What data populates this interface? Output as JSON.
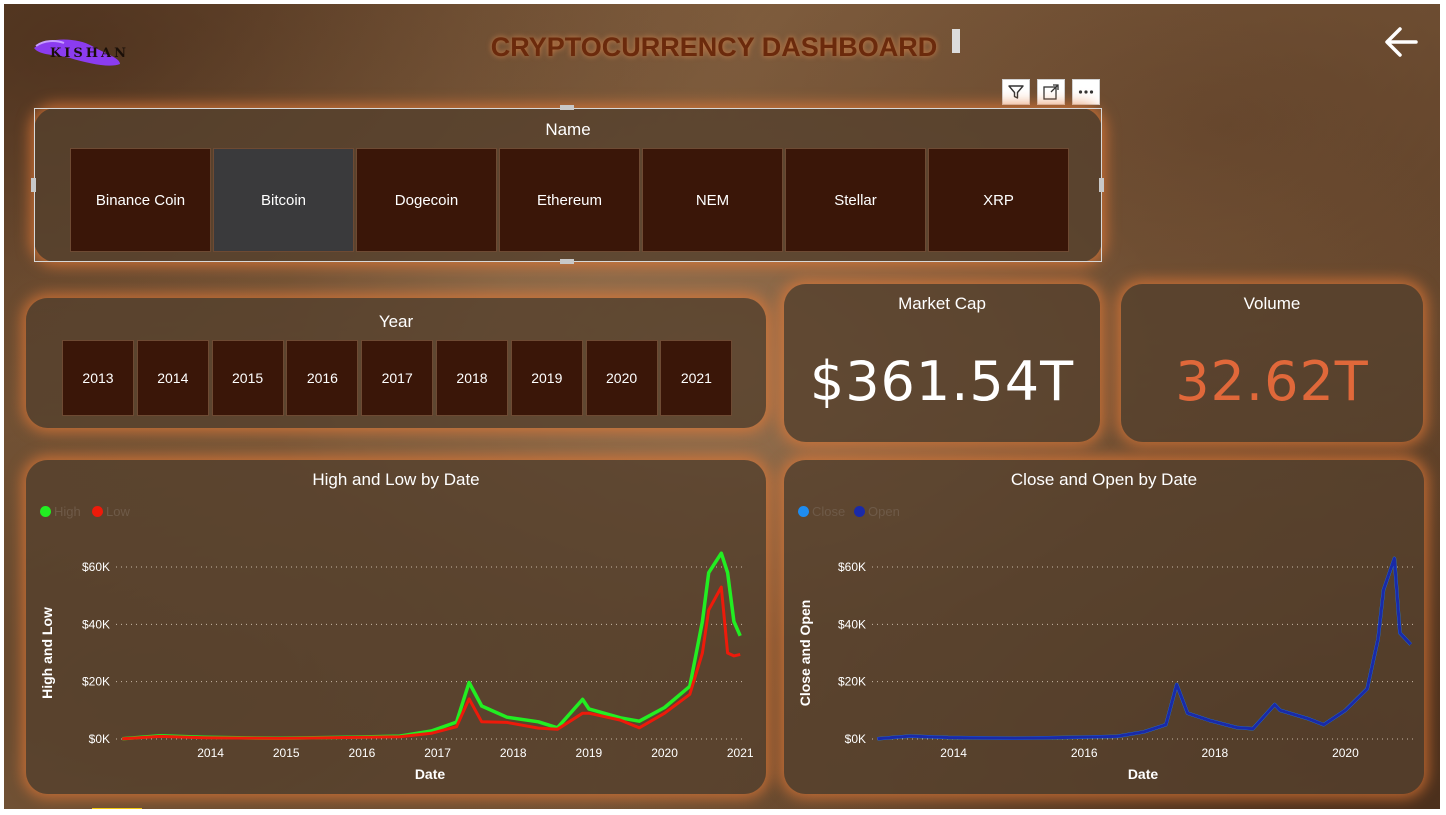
{
  "header": {
    "title": "CRYPTOCURRENCY DASHBOARD",
    "logo_text": "KISHAN"
  },
  "visual_toolbar": {
    "icons": [
      "filter-icon",
      "focus-mode-icon",
      "more-options-icon"
    ]
  },
  "name_slicer": {
    "title": "Name",
    "items": [
      {
        "label": "Binance Coin",
        "selected": false
      },
      {
        "label": "Bitcoin",
        "selected": true
      },
      {
        "label": "Dogecoin",
        "selected": false
      },
      {
        "label": "Ethereum",
        "selected": false
      },
      {
        "label": "NEM",
        "selected": false
      },
      {
        "label": "Stellar",
        "selected": false
      },
      {
        "label": "XRP",
        "selected": false
      }
    ]
  },
  "year_slicer": {
    "title": "Year",
    "items": [
      "2013",
      "2014",
      "2015",
      "2016",
      "2017",
      "2018",
      "2019",
      "2020",
      "2021"
    ]
  },
  "market_cap": {
    "title": "Market Cap",
    "value": "$361.54T",
    "color": "#ffffff"
  },
  "volume": {
    "title": "Volume",
    "value": "32.62T",
    "color": "#e0683a"
  },
  "chart_data": [
    {
      "type": "line",
      "title": "High and Low by Date",
      "xlabel": "Date",
      "ylabel": "High and Low",
      "x_ticks": [
        "2014",
        "2015",
        "2016",
        "2017",
        "2018",
        "2019",
        "2020",
        "2021"
      ],
      "y_ticks": [
        "$0K",
        "$20K",
        "$40K",
        "$60K"
      ],
      "ylim": [
        0,
        60000
      ],
      "grid": "horizontal-dotted",
      "legend_position": "top-left",
      "series": [
        {
          "name": "High",
          "color": "#22ee22",
          "x": [
            "2013-05",
            "2013-11",
            "2014-06",
            "2015-06",
            "2016-06",
            "2017-01",
            "2017-06",
            "2017-10",
            "2017-12",
            "2018-02",
            "2018-06",
            "2018-11",
            "2019-02",
            "2019-06",
            "2019-07",
            "2019-12",
            "2020-03",
            "2020-07",
            "2020-11",
            "2021-01",
            "2021-02",
            "2021-04",
            "2021-05",
            "2021-06",
            "2021-07"
          ],
          "values": [
            120,
            1100,
            600,
            260,
            680,
            1000,
            2800,
            5900,
            19700,
            11500,
            7600,
            6000,
            3900,
            13800,
            10500,
            7400,
            6200,
            11000,
            18400,
            41000,
            58000,
            64800,
            58000,
            41000,
            36000
          ]
        },
        {
          "name": "Low",
          "color": "#ee1a0a",
          "x": [
            "2013-05",
            "2013-11",
            "2014-06",
            "2015-06",
            "2016-06",
            "2017-01",
            "2017-06",
            "2017-10",
            "2017-12",
            "2018-02",
            "2018-06",
            "2018-11",
            "2019-02",
            "2019-06",
            "2019-07",
            "2019-12",
            "2020-03",
            "2020-07",
            "2020-11",
            "2021-01",
            "2021-02",
            "2021-04",
            "2021-05",
            "2021-06",
            "2021-07"
          ],
          "values": [
            80,
            900,
            450,
            200,
            560,
            780,
            2000,
            4300,
            14000,
            6000,
            5800,
            3800,
            3400,
            9000,
            9000,
            6600,
            3900,
            9000,
            15600,
            30000,
            45000,
            53000,
            30000,
            29000,
            29500
          ]
        }
      ]
    },
    {
      "type": "line",
      "title": "Close and Open by Date",
      "xlabel": "Date",
      "ylabel": "Close and Open",
      "x_ticks": [
        "2014",
        "2016",
        "2018",
        "2020"
      ],
      "y_ticks": [
        "$0K",
        "$20K",
        "$40K",
        "$60K"
      ],
      "ylim": [
        0,
        60000
      ],
      "grid": "horizontal-dotted",
      "legend_position": "top-left",
      "series": [
        {
          "name": "Close",
          "color": "#1e8cf0",
          "x": [
            "2013-05",
            "2013-11",
            "2014-06",
            "2015-06",
            "2016-06",
            "2017-01",
            "2017-06",
            "2017-10",
            "2017-12",
            "2018-02",
            "2018-06",
            "2018-11",
            "2019-02",
            "2019-06",
            "2019-07",
            "2019-12",
            "2020-03",
            "2020-07",
            "2020-11",
            "2021-01",
            "2021-02",
            "2021-04",
            "2021-05",
            "2021-06",
            "2021-07"
          ],
          "values": [
            100,
            1000,
            520,
            230,
            620,
            900,
            2500,
            5000,
            19000,
            9000,
            6500,
            4000,
            3600,
            12000,
            10000,
            7200,
            5000,
            10000,
            17500,
            35000,
            52000,
            63000,
            37000,
            35000,
            33000
          ]
        },
        {
          "name": "Open",
          "color": "#1a2aa8",
          "x": [
            "2013-05",
            "2013-11",
            "2014-06",
            "2015-06",
            "2016-06",
            "2017-01",
            "2017-06",
            "2017-10",
            "2017-12",
            "2018-02",
            "2018-06",
            "2018-11",
            "2019-02",
            "2019-06",
            "2019-07",
            "2019-12",
            "2020-03",
            "2020-07",
            "2020-11",
            "2021-01",
            "2021-02",
            "2021-04",
            "2021-05",
            "2021-06",
            "2021-07"
          ],
          "values": [
            100,
            1000,
            520,
            230,
            620,
            900,
            2500,
            5000,
            19000,
            9000,
            6500,
            4000,
            3600,
            12000,
            10000,
            7200,
            5000,
            10000,
            17500,
            35000,
            52000,
            63000,
            37000,
            35000,
            33000
          ]
        }
      ]
    }
  ]
}
